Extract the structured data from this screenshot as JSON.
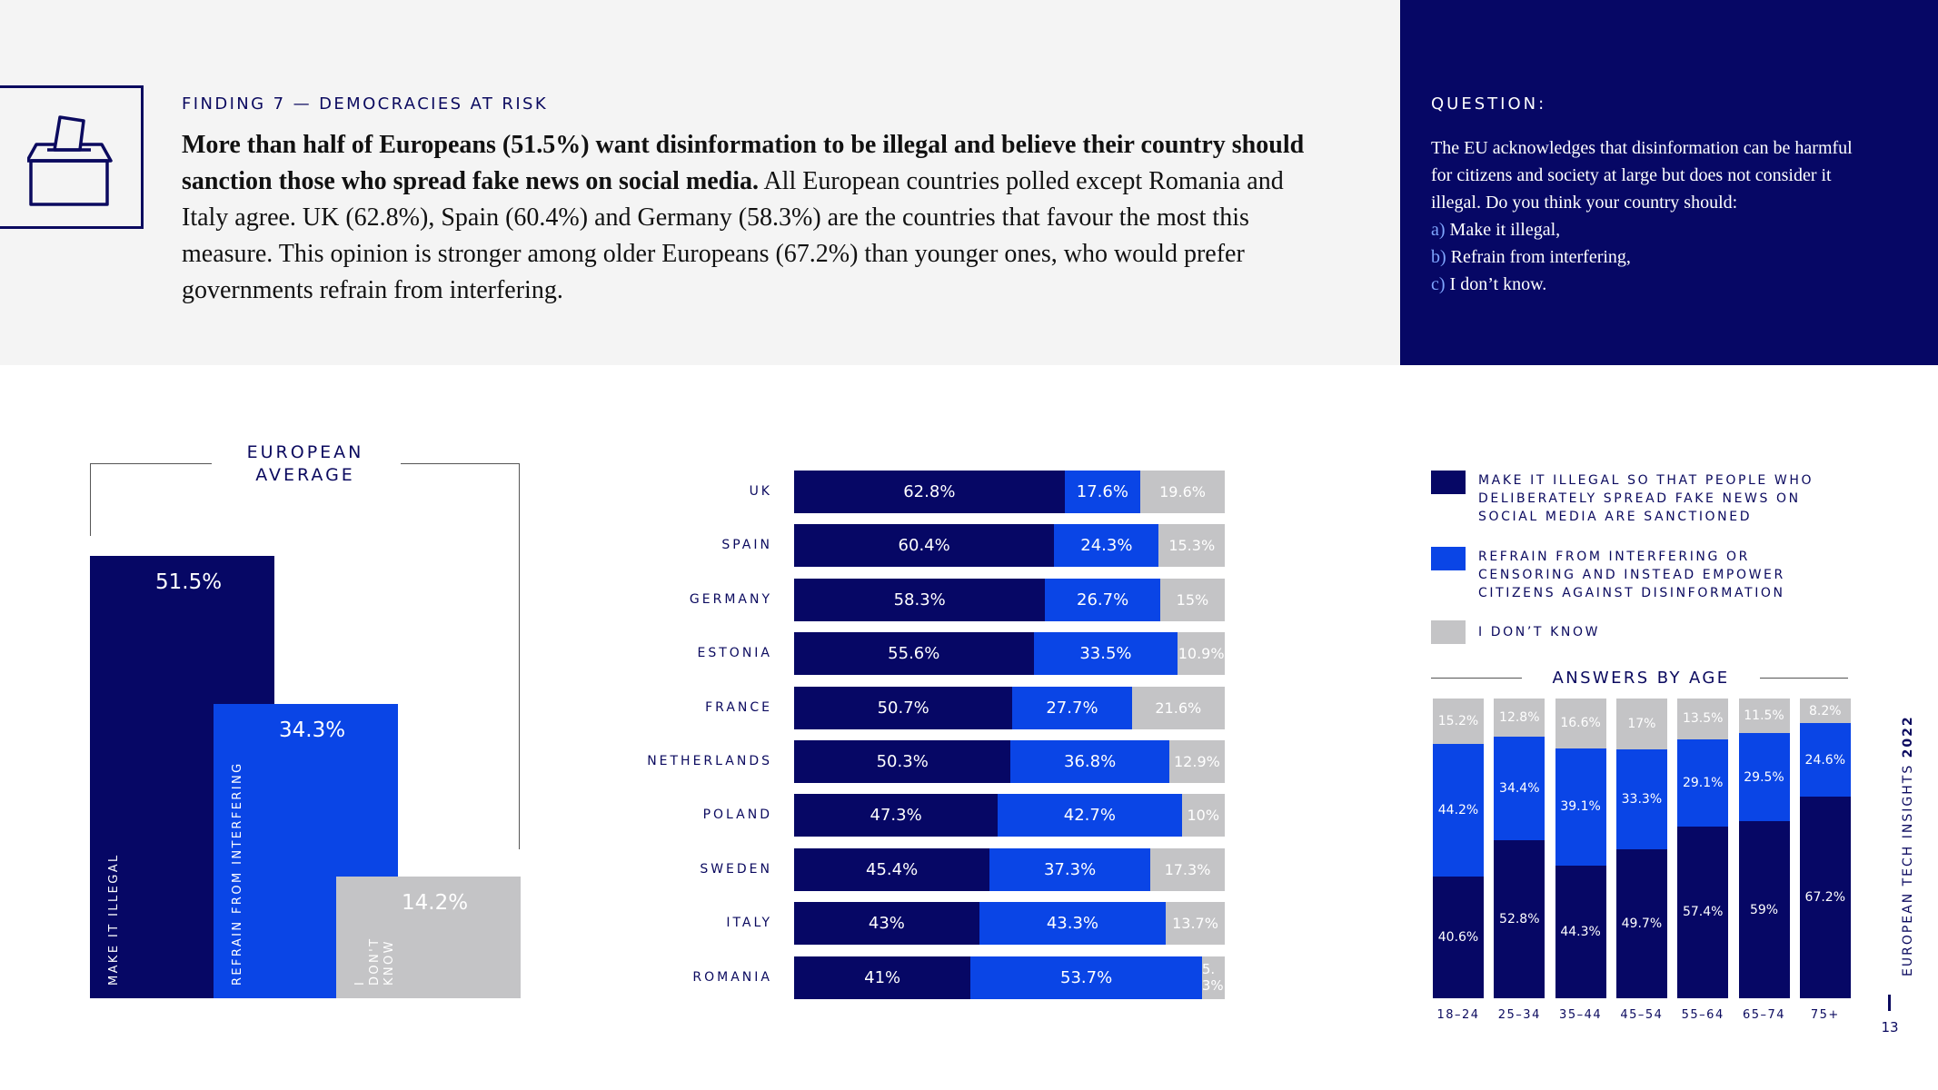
{
  "colors": {
    "illegal": "#060765",
    "refrain": "#0a45e6",
    "dontknow": "#c4c4c6"
  },
  "finding": {
    "label": "FINDING 7 — DEMOCRACIES AT RISK",
    "body_bold": "More than half of Europeans (51.5%) want disinformation to be illegal and believe their country should sanction those who spread fake news on social media.",
    "body_rest": " All European countries polled except Romania and Italy agree. UK (62.8%), Spain (60.4%) and Germany (58.3%) are the countries that favour the most this measure. This opinion is stronger among older Europeans (67.2%) than younger ones, who would prefer governments refrain from interfering."
  },
  "question": {
    "label": "QUESTION:",
    "text": "The EU acknowledges that disinformation can be harmful for citizens and society at large but does not consider it illegal. Do you think your country should:",
    "options": [
      {
        "key": "a)",
        "text": " Make it illegal,"
      },
      {
        "key": "b)",
        "text": " Refrain from interfering,"
      },
      {
        "key": "c)",
        "text": " I don’t know."
      }
    ]
  },
  "chart_data": [
    {
      "type": "bar",
      "title": "EUROPEAN AVERAGE",
      "categories": [
        "MAKE IT ILLEGAL",
        "REFRAIN FROM INTERFERING",
        "I DON'T KNOW"
      ],
      "values": [
        51.5,
        34.3,
        14.2
      ],
      "value_labels": [
        "51.5%",
        "34.3%",
        "14.2%"
      ],
      "ylim": [
        0,
        51.5
      ]
    },
    {
      "type": "bar",
      "orientation": "horizontal-stacked",
      "categories": [
        "UK",
        "SPAIN",
        "GERMANY",
        "ESTONIA",
        "FRANCE",
        "NETHERLANDS",
        "POLAND",
        "SWEDEN",
        "ITALY",
        "ROMANIA"
      ],
      "series": [
        {
          "name": "Make it illegal so that people who deliberately spread fake news on social media are sanctioned",
          "values": [
            62.8,
            60.4,
            58.3,
            55.6,
            50.7,
            50.3,
            47.3,
            45.4,
            43,
            41
          ],
          "labels": [
            "62.8%",
            "60.4%",
            "58.3%",
            "55.6%",
            "50.7%",
            "50.3%",
            "47.3%",
            "45.4%",
            "43%",
            "41%"
          ]
        },
        {
          "name": "Refrain from interfering or censoring and instead empower citizens against disinformation",
          "values": [
            17.6,
            24.3,
            26.7,
            33.5,
            27.7,
            36.8,
            42.7,
            37.3,
            43.3,
            53.7
          ],
          "labels": [
            "17.6%",
            "24.3%",
            "26.7%",
            "33.5%",
            "27.7%",
            "36.8%",
            "42.7%",
            "37.3%",
            "43.3%",
            "53.7%"
          ]
        },
        {
          "name": "I don't know",
          "values": [
            19.6,
            15.3,
            15,
            10.9,
            21.6,
            12.9,
            10,
            17.3,
            13.7,
            5.3
          ],
          "labels": [
            "19.6%",
            "15.3%",
            "15%",
            "10.9%",
            "21.6%",
            "12.9%",
            "10%",
            "17.3%",
            "13.7%",
            "5.3%"
          ]
        }
      ]
    },
    {
      "type": "bar",
      "orientation": "vertical-stacked",
      "title": "ANSWERS BY AGE",
      "categories": [
        "18–24",
        "25–34",
        "35–44",
        "45–54",
        "55–64",
        "65–74",
        "75+"
      ],
      "series": [
        {
          "name": "Make it illegal",
          "values": [
            40.6,
            52.8,
            44.3,
            49.7,
            57.4,
            59,
            67.2
          ],
          "labels": [
            "40.6%",
            "52.8%",
            "44.3%",
            "49.7%",
            "57.4%",
            "59%",
            "67.2%"
          ]
        },
        {
          "name": "Refrain from interfering",
          "values": [
            44.2,
            34.4,
            39.1,
            33.3,
            29.1,
            29.5,
            24.6
          ],
          "labels": [
            "44.2%",
            "34.4%",
            "39.1%",
            "33.3%",
            "29.1%",
            "29.5%",
            "24.6%"
          ]
        },
        {
          "name": "I don't know",
          "values": [
            15.2,
            12.8,
            16.6,
            17,
            13.5,
            11.5,
            8.2
          ],
          "labels": [
            "15.2%",
            "12.8%",
            "16.6%",
            "17%",
            "13.5%",
            "11.5%",
            "8.2%"
          ]
        }
      ]
    }
  ],
  "legend": [
    {
      "text": "MAKE IT ILLEGAL SO THAT PEOPLE WHO DELIBERATELY SPREAD FAKE NEWS ON SOCIAL MEDIA ARE SANCTIONED"
    },
    {
      "text": "REFRAIN FROM INTERFERING OR CENSORING AND INSTEAD EMPOWER CITIZENS AGAINST DISINFORMATION"
    },
    {
      "text": "I DON’T KNOW"
    }
  ],
  "footer": {
    "side_title": "EUROPEAN TECH INSIGHTS ",
    "side_year": "2022",
    "page_number": "13"
  }
}
